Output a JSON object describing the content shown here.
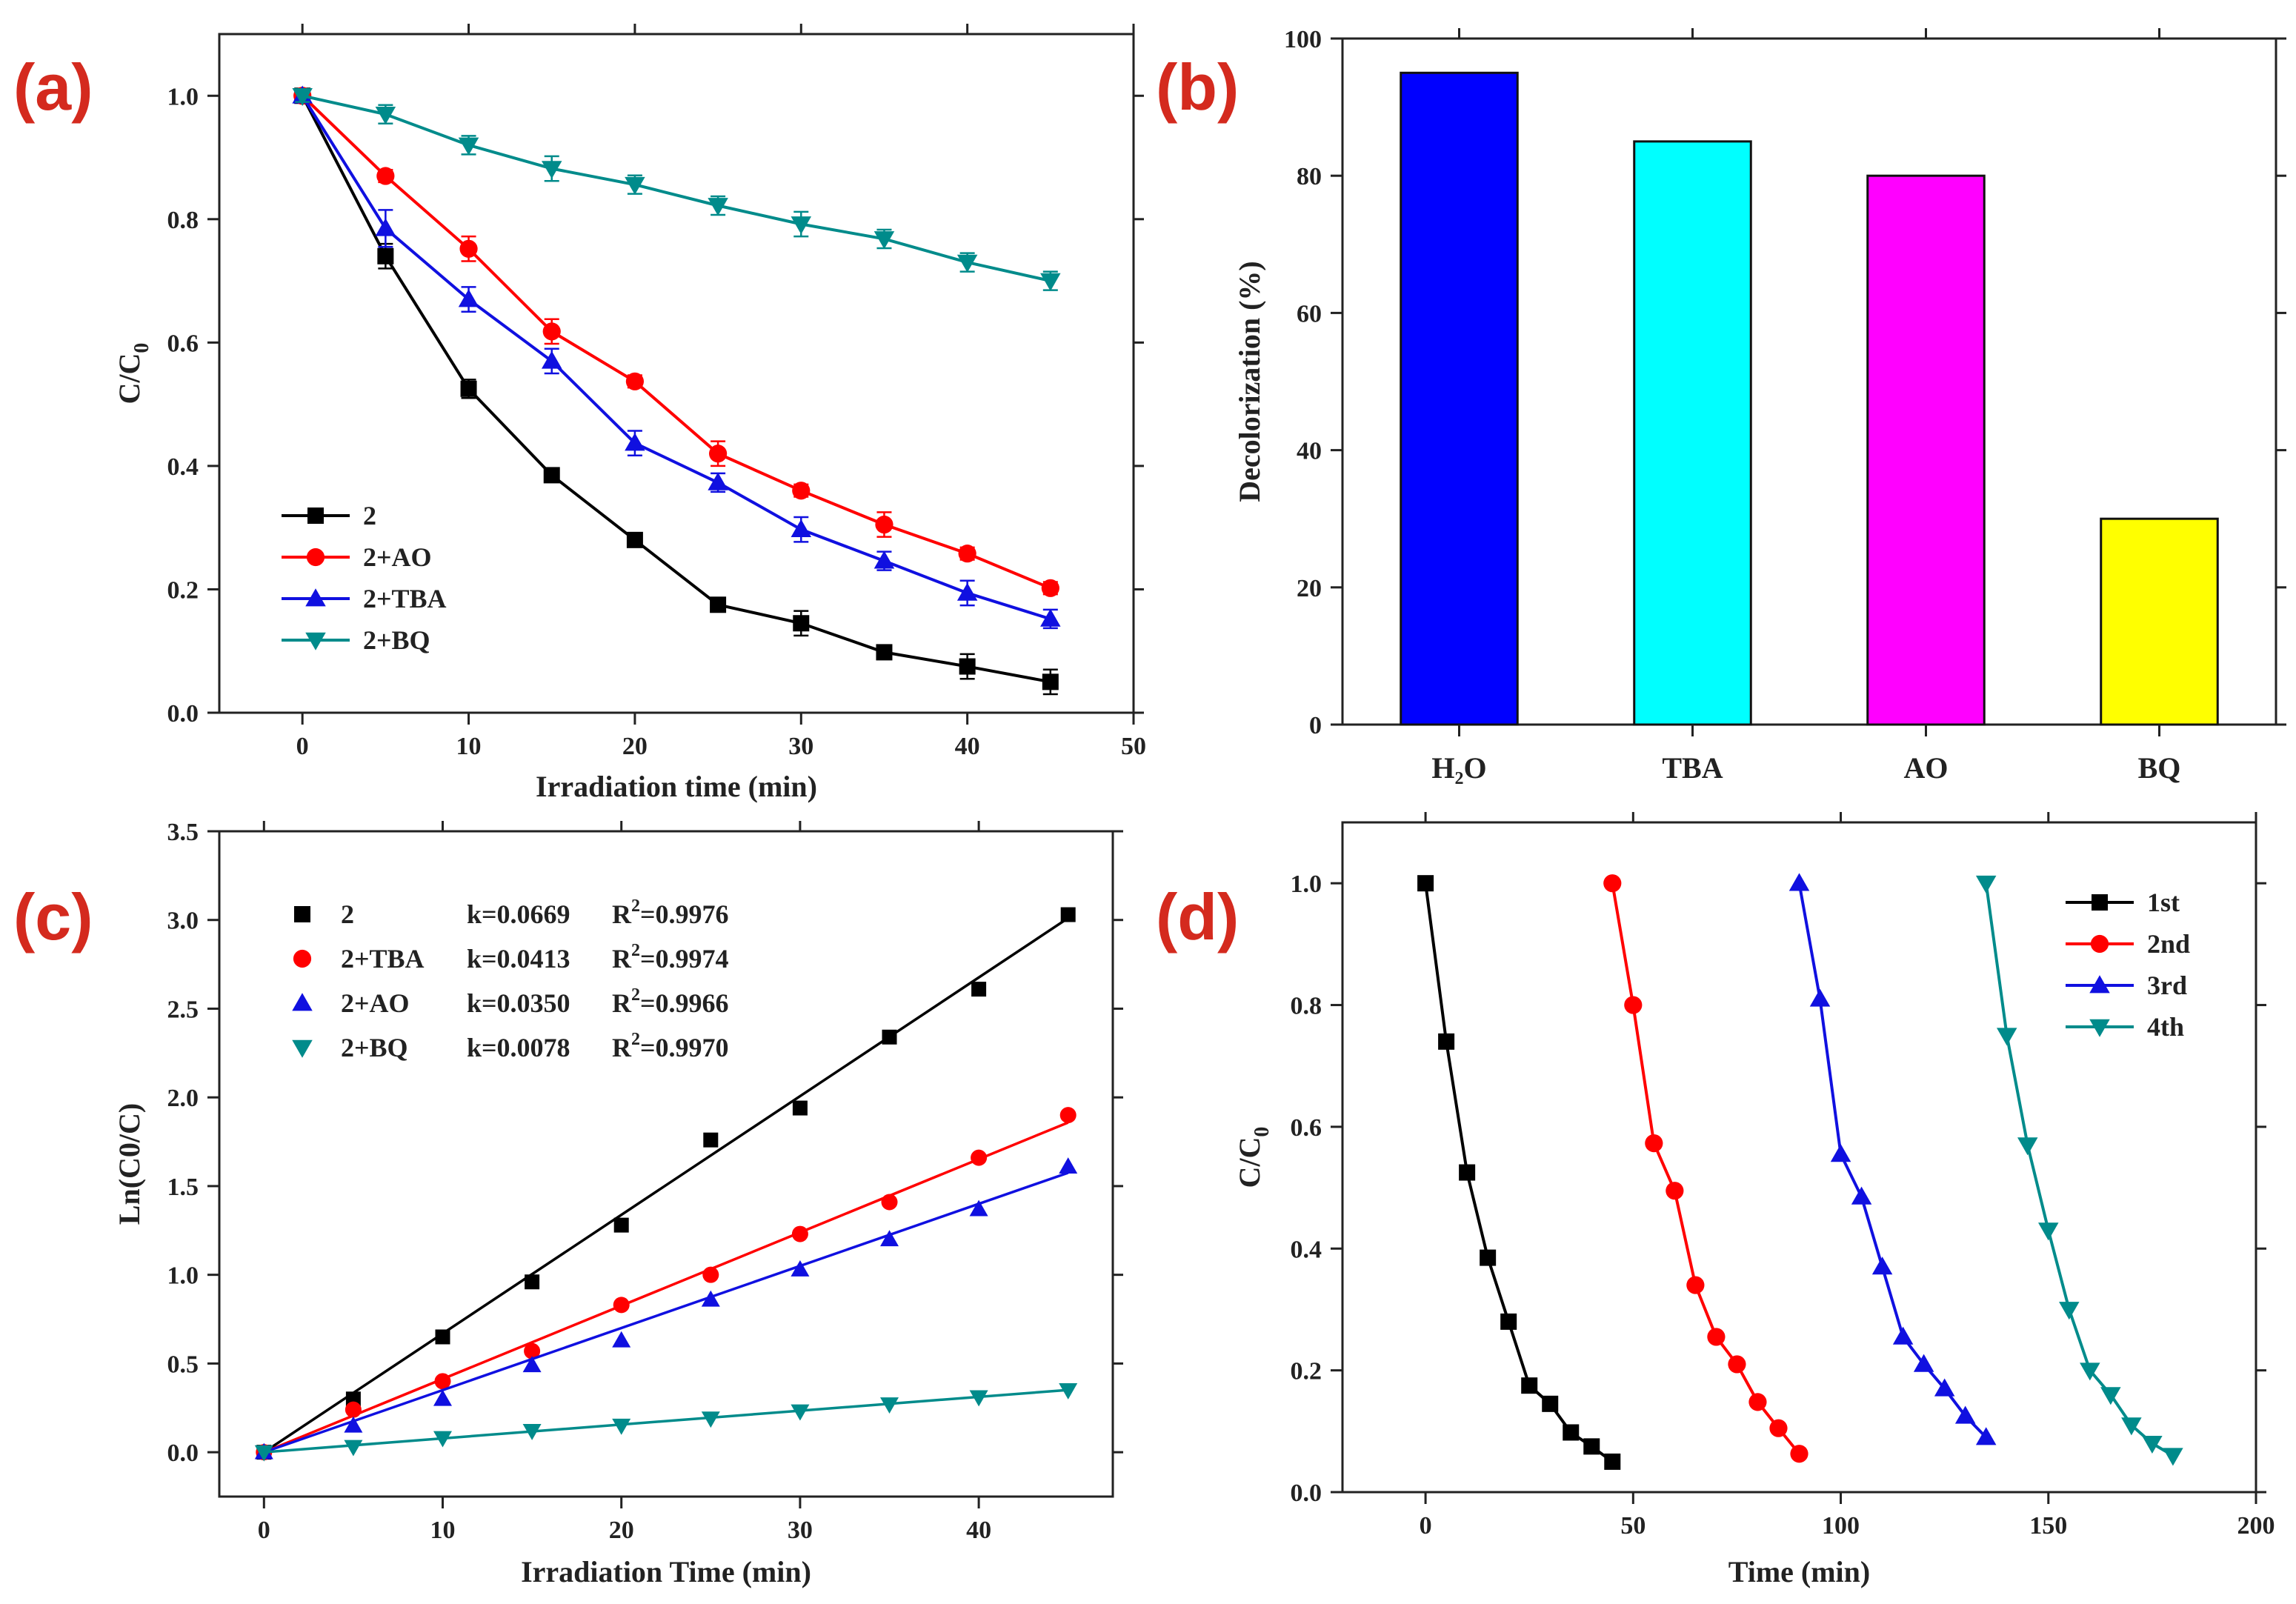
{
  "chart_data": [
    {
      "panel": "(a)",
      "type": "line",
      "xlabel": "Irradiation time (min)",
      "ylabel": "C/C",
      "ylabel_sub": "0",
      "xlim": [
        -5,
        50
      ],
      "ylim": [
        0.0,
        1.1
      ],
      "xticks": [
        0,
        10,
        20,
        30,
        40,
        50
      ],
      "xtick_labels": [
        "0",
        "10",
        "20",
        "30",
        "40",
        "50"
      ],
      "yticks": [
        0.0,
        0.2,
        0.4,
        0.6,
        0.8,
        1.0
      ],
      "ytick_labels": [
        "0.0",
        "0.2",
        "0.4",
        "0.6",
        "0.8",
        "1.0"
      ],
      "legend_position": "bottom-left",
      "x": [
        0,
        5,
        10,
        15,
        20,
        25,
        30,
        35,
        40,
        45
      ],
      "series": [
        {
          "name": "2",
          "color": "#000000",
          "marker": "square",
          "values": [
            1.0,
            0.74,
            0.525,
            0.385,
            0.28,
            0.175,
            0.145,
            0.098,
            0.075,
            0.05
          ],
          "errors": [
            0.01,
            0.02,
            0.015,
            0.01,
            0.01,
            0.01,
            0.02,
            0.01,
            0.02,
            0.02
          ]
        },
        {
          "name": "2+AO",
          "color": "#ff0000",
          "marker": "circle",
          "values": [
            1.0,
            0.87,
            0.752,
            0.618,
            0.537,
            0.42,
            0.36,
            0.305,
            0.258,
            0.202
          ],
          "errors": [
            0.01,
            0.01,
            0.02,
            0.02,
            0.01,
            0.02,
            0.01,
            0.02,
            0.01,
            0.01
          ]
        },
        {
          "name": "2+TBA",
          "color": "#1010e0",
          "marker": "triangle-up",
          "values": [
            1.0,
            0.785,
            0.67,
            0.57,
            0.437,
            0.373,
            0.297,
            0.246,
            0.194,
            0.152
          ],
          "errors": [
            0.01,
            0.03,
            0.02,
            0.02,
            0.02,
            0.015,
            0.02,
            0.015,
            0.02,
            0.015
          ]
        },
        {
          "name": "2+BQ",
          "color": "#008b8b",
          "marker": "triangle-down",
          "values": [
            1.0,
            0.97,
            0.92,
            0.882,
            0.856,
            0.822,
            0.792,
            0.768,
            0.73,
            0.7
          ],
          "errors": [
            0.01,
            0.015,
            0.015,
            0.02,
            0.015,
            0.015,
            0.02,
            0.015,
            0.015,
            0.015
          ]
        }
      ]
    },
    {
      "panel": "(b)",
      "type": "bar",
      "xlabel": "",
      "ylabel": "Decolorization (%)",
      "ylim": [
        0,
        100
      ],
      "yticks": [
        0,
        20,
        40,
        60,
        80,
        100
      ],
      "ytick_labels": [
        "0",
        "20",
        "40",
        "60",
        "80",
        "100"
      ],
      "categories": [
        "H₂O",
        "TBA",
        "AO",
        "BQ"
      ],
      "values": [
        95,
        85,
        80,
        30
      ],
      "colors": [
        "#0000ff",
        "#00ffff",
        "#ff00ff",
        "#ffff00"
      ]
    },
    {
      "panel": "(c)",
      "type": "scatter",
      "xlabel": "Irradiation Time (min)",
      "ylabel": "Ln(C0/C)",
      "xlim": [
        -2.5,
        47.5
      ],
      "ylim": [
        -0.25,
        3.5
      ],
      "xticks": [
        0,
        10,
        20,
        30,
        40
      ],
      "xtick_labels": [
        "0",
        "10",
        "20",
        "30",
        "40"
      ],
      "yticks": [
        0.0,
        0.5,
        1.0,
        1.5,
        2.0,
        2.5,
        3.0,
        3.5
      ],
      "ytick_labels": [
        "0.0",
        "0.5",
        "1.0",
        "1.5",
        "2.0",
        "2.5",
        "3.0",
        "3.5"
      ],
      "legend_position": "top-left",
      "x": [
        0,
        5,
        10,
        15,
        20,
        25,
        30,
        35,
        40,
        45
      ],
      "series": [
        {
          "name": "2",
          "k_text": "k=0.0669",
          "r2_text": "=0.9976",
          "k": 0.0669,
          "color": "#000000",
          "marker": "square",
          "values": [
            0.0,
            0.3,
            0.65,
            0.96,
            1.28,
            1.76,
            1.94,
            2.34,
            2.61,
            3.03
          ]
        },
        {
          "name": "2+TBA",
          "k_text": "k=0.0413",
          "r2_text": "=0.9974",
          "k": 0.0413,
          "color": "#ff0000",
          "marker": "circle",
          "values": [
            0.0,
            0.24,
            0.4,
            0.57,
            0.83,
            1.0,
            1.23,
            1.41,
            1.66,
            1.9
          ]
        },
        {
          "name": "2+AO",
          "k_text": "k=0.0350",
          "r2_text": "=0.9966",
          "k": 0.035,
          "color": "#1010e0",
          "marker": "triangle-up",
          "values": [
            0.0,
            0.15,
            0.3,
            0.49,
            0.63,
            0.86,
            1.03,
            1.2,
            1.37,
            1.61
          ]
        },
        {
          "name": "2+BQ",
          "k_text": "k=0.0078",
          "r2_text": "=0.9970",
          "k": 0.0078,
          "color": "#008b8b",
          "marker": "triangle-down",
          "values": [
            0.0,
            0.03,
            0.08,
            0.12,
            0.15,
            0.19,
            0.23,
            0.27,
            0.31,
            0.35
          ]
        }
      ]
    },
    {
      "panel": "(d)",
      "type": "line",
      "xlabel": "Time (min)",
      "ylabel": "C/C",
      "ylabel_sub": "0",
      "xlim": [
        -20,
        200
      ],
      "ylim": [
        0.0,
        1.1
      ],
      "xticks": [
        0,
        50,
        100,
        150,
        200
      ],
      "xtick_labels": [
        "0",
        "50",
        "100",
        "150",
        "200"
      ],
      "yticks": [
        0.0,
        0.2,
        0.4,
        0.6,
        0.8,
        1.0
      ],
      "ytick_labels": [
        "0.0",
        "0.2",
        "0.4",
        "0.6",
        "0.8",
        "1.0"
      ],
      "legend_position": "top-right",
      "series": [
        {
          "name": "1st",
          "color": "#000000",
          "marker": "square",
          "x": [
            0,
            5,
            10,
            15,
            20,
            25,
            30,
            35,
            40,
            45
          ],
          "values": [
            1.0,
            0.74,
            0.525,
            0.385,
            0.28,
            0.175,
            0.145,
            0.098,
            0.075,
            0.05
          ]
        },
        {
          "name": "2nd",
          "color": "#ff0000",
          "marker": "circle",
          "x": [
            45,
            50,
            55,
            60,
            65,
            70,
            75,
            80,
            85,
            90
          ],
          "values": [
            1.0,
            0.8,
            0.573,
            0.495,
            0.34,
            0.255,
            0.21,
            0.148,
            0.105,
            0.063
          ]
        },
        {
          "name": "3rd",
          "color": "#1010e0",
          "marker": "triangle-up",
          "x": [
            90,
            95,
            100,
            105,
            110,
            115,
            120,
            125,
            130,
            135
          ],
          "values": [
            1.0,
            0.81,
            0.555,
            0.485,
            0.37,
            0.255,
            0.21,
            0.17,
            0.125,
            0.09
          ]
        },
        {
          "name": "4th",
          "color": "#008b8b",
          "marker": "triangle-down",
          "x": [
            135,
            140,
            145,
            150,
            155,
            160,
            165,
            170,
            175,
            180
          ],
          "values": [
            1.0,
            0.75,
            0.57,
            0.43,
            0.3,
            0.2,
            0.16,
            0.11,
            0.08,
            0.06
          ]
        }
      ]
    }
  ]
}
